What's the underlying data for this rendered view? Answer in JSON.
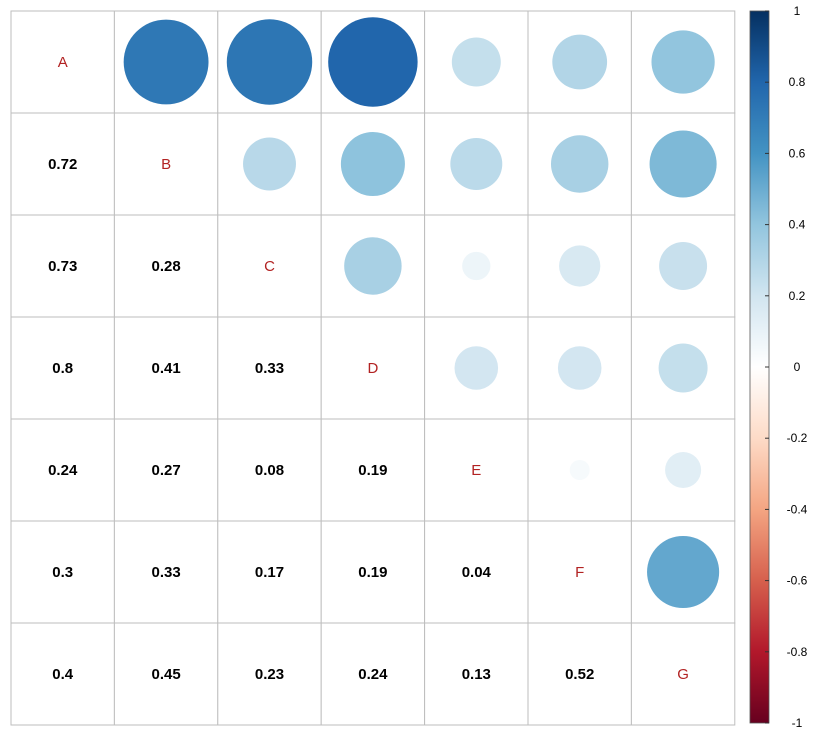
{
  "chart_data": {
    "type": "heatmap",
    "variables": [
      "A",
      "B",
      "C",
      "D",
      "E",
      "F",
      "G"
    ],
    "matrix": [
      [
        1.0,
        0.72,
        0.73,
        0.8,
        0.24,
        0.3,
        0.4
      ],
      [
        0.72,
        1.0,
        0.28,
        0.41,
        0.27,
        0.33,
        0.45
      ],
      [
        0.73,
        0.28,
        1.0,
        0.33,
        0.08,
        0.17,
        0.23
      ],
      [
        0.8,
        0.41,
        0.33,
        1.0,
        0.19,
        0.19,
        0.24
      ],
      [
        0.24,
        0.27,
        0.08,
        0.19,
        1.0,
        0.04,
        0.13
      ],
      [
        0.3,
        0.33,
        0.17,
        0.19,
        0.04,
        1.0,
        0.52
      ],
      [
        0.4,
        0.45,
        0.23,
        0.24,
        0.13,
        0.52,
        1.0
      ]
    ],
    "lower_labels": [
      [
        "0.72"
      ],
      [
        "0.73",
        "0.28"
      ],
      [
        "0.8",
        "0.41",
        "0.33"
      ],
      [
        "0.24",
        "0.27",
        "0.08",
        "0.19"
      ],
      [
        "0.3",
        "0.33",
        "0.17",
        "0.19",
        "0.04"
      ],
      [
        "0.4",
        "0.45",
        "0.23",
        "0.24",
        "0.13",
        "0.52"
      ]
    ],
    "upper_style": "circle",
    "lower_style": "number",
    "colorbar": {
      "range": [
        -1,
        1
      ],
      "ticks": [
        "1",
        "0.8",
        "0.6",
        "0.4",
        "0.2",
        "0",
        "-0.2",
        "-0.4",
        "-0.6",
        "-0.8",
        "-1"
      ],
      "colors": [
        "#67001F",
        "#B2182B",
        "#D6604D",
        "#F4A582",
        "#FDDBC7",
        "#FFFFFF",
        "#D1E5F0",
        "#92C5DE",
        "#4393C3",
        "#2166AC",
        "#053061"
      ]
    },
    "label_color": "#B22222",
    "value_color": "#000000",
    "grid_color": "#BEBEBE",
    "grid": true
  }
}
